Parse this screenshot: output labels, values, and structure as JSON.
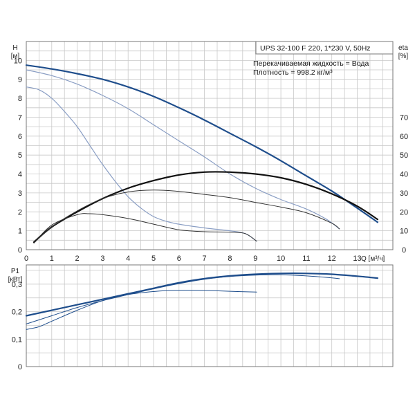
{
  "chart_data": [
    {
      "type": "line",
      "name": "head-chart",
      "info": {
        "model": "UPS 32-100 F 220, 1*230 V, 50Hz",
        "liquid": "Перекачиваемая жидкость = Вода",
        "density": "Плотность = 998.2 кг/м³"
      },
      "y_label_top": "H",
      "y_label_unit": "[м]",
      "y2_label_top": "eta",
      "y2_label_unit": "[%]",
      "x_label": "Q [м³/ч]",
      "x_ticks": [
        "0",
        "1",
        "2",
        "3",
        "4",
        "5",
        "6",
        "7",
        "8",
        "9",
        "10",
        "11",
        "12",
        "13"
      ],
      "y_ticks": [
        "0",
        "1",
        "2",
        "3",
        "4",
        "5",
        "6",
        "7",
        "8",
        "9",
        "10"
      ],
      "y2_ticks": [
        "0",
        "10",
        "20",
        "30",
        "40",
        "50",
        "60",
        "70"
      ],
      "xlim": [
        0,
        14.4
      ],
      "ylim": [
        0,
        11
      ],
      "y2lim": [
        0,
        110
      ],
      "grid": true,
      "series": [
        {
          "kind": "head",
          "color": "#1f4e8c",
          "width": 2.2,
          "points": [
            [
              0,
              9.75
            ],
            [
              1,
              9.55
            ],
            [
              2,
              9.3
            ],
            [
              3,
              9.0
            ],
            [
              4,
              8.6
            ],
            [
              5,
              8.1
            ],
            [
              6,
              7.5
            ],
            [
              7,
              6.85
            ],
            [
              8,
              6.15
            ],
            [
              9,
              5.45
            ],
            [
              10,
              4.7
            ],
            [
              11,
              3.9
            ],
            [
              12,
              3.1
            ],
            [
              13,
              2.2
            ],
            [
              13.8,
              1.45
            ]
          ]
        },
        {
          "kind": "head",
          "color": "#8a9ec4",
          "width": 1.2,
          "points": [
            [
              0,
              9.5
            ],
            [
              1,
              9.2
            ],
            [
              2,
              8.75
            ],
            [
              3,
              8.15
            ],
            [
              4,
              7.45
            ],
            [
              5,
              6.6
            ],
            [
              6,
              5.75
            ],
            [
              7,
              4.9
            ],
            [
              8,
              4.0
            ],
            [
              9,
              3.25
            ],
            [
              10,
              2.65
            ],
            [
              11,
              2.15
            ],
            [
              11.8,
              1.6
            ],
            [
              12.3,
              1.1
            ]
          ]
        },
        {
          "kind": "head",
          "color": "#8a9ec4",
          "width": 1.2,
          "points": [
            [
              0,
              8.6
            ],
            [
              0.5,
              8.45
            ],
            [
              1,
              8.0
            ],
            [
              1.5,
              7.3
            ],
            [
              2,
              6.5
            ],
            [
              2.5,
              5.5
            ],
            [
              3,
              4.5
            ],
            [
              3.5,
              3.6
            ],
            [
              4,
              2.8
            ],
            [
              4.5,
              2.2
            ],
            [
              5,
              1.75
            ],
            [
              5.5,
              1.5
            ],
            [
              6,
              1.35
            ],
            [
              7,
              1.15
            ],
            [
              8,
              1.0
            ],
            [
              8.6,
              0.85
            ],
            [
              9.05,
              0.45
            ]
          ]
        },
        {
          "kind": "eta",
          "color": "#111111",
          "width": 2.2,
          "points": [
            [
              0.3,
              4
            ],
            [
              1,
              12
            ],
            [
              2,
              20
            ],
            [
              3,
              27
            ],
            [
              4,
              32.5
            ],
            [
              5,
              36.5
            ],
            [
              6,
              39.5
            ],
            [
              7,
              41
            ],
            [
              8,
              41
            ],
            [
              9,
              40
            ],
            [
              10,
              38
            ],
            [
              11,
              34.5
            ],
            [
              12,
              29.5
            ],
            [
              13,
              23
            ],
            [
              13.8,
              16
            ]
          ]
        },
        {
          "kind": "eta",
          "color": "#333333",
          "width": 1.0,
          "points": [
            [
              0.3,
              3.5
            ],
            [
              1,
              12
            ],
            [
              2,
              20.5
            ],
            [
              3,
              27
            ],
            [
              4,
              30.5
            ],
            [
              5,
              31.5
            ],
            [
              6,
              30.8
            ],
            [
              7,
              29.2
            ],
            [
              8,
              27.5
            ],
            [
              9,
              25
            ],
            [
              10,
              22.5
            ],
            [
              11,
              19.5
            ],
            [
              12,
              14
            ],
            [
              12.3,
              11
            ]
          ]
        },
        {
          "kind": "eta",
          "color": "#333333",
          "width": 1.0,
          "points": [
            [
              0.3,
              3.5
            ],
            [
              1,
              13
            ],
            [
              2,
              18.5
            ],
            [
              2.5,
              19
            ],
            [
              3,
              18.5
            ],
            [
              4,
              16.5
            ],
            [
              5,
              13.5
            ],
            [
              6,
              10.5
            ],
            [
              7,
              9.5
            ],
            [
              8,
              9.3
            ],
            [
              8.6,
              8.5
            ],
            [
              9.05,
              4.5
            ]
          ]
        }
      ]
    },
    {
      "type": "line",
      "name": "power-chart",
      "y_label_top": "P1",
      "y_label_unit": "[кВт]",
      "y_ticks": [
        "0",
        "0,1",
        "0,2",
        "0,3"
      ],
      "xlim": [
        0,
        14.4
      ],
      "ylim": [
        0,
        0.37
      ],
      "grid": true,
      "series": [
        {
          "kind": "power",
          "color": "#1f4e8c",
          "width": 2.2,
          "points": [
            [
              0,
              0.185
            ],
            [
              1,
              0.205
            ],
            [
              2,
              0.225
            ],
            [
              3,
              0.245
            ],
            [
              4,
              0.265
            ],
            [
              5,
              0.285
            ],
            [
              6,
              0.305
            ],
            [
              7,
              0.32
            ],
            [
              8,
              0.33
            ],
            [
              9,
              0.336
            ],
            [
              10,
              0.339
            ],
            [
              11,
              0.339
            ],
            [
              12,
              0.336
            ],
            [
              13,
              0.329
            ],
            [
              13.8,
              0.322
            ]
          ]
        },
        {
          "kind": "power",
          "color": "#1f4e8c",
          "width": 1.0,
          "points": [
            [
              0,
              0.155
            ],
            [
              1,
              0.185
            ],
            [
              2,
              0.215
            ],
            [
              3,
              0.24
            ],
            [
              4,
              0.262
            ],
            [
              5,
              0.283
            ],
            [
              6,
              0.302
            ],
            [
              7,
              0.318
            ],
            [
              8,
              0.328
            ],
            [
              9,
              0.333
            ],
            [
              10,
              0.334
            ],
            [
              11,
              0.33
            ],
            [
              12,
              0.323
            ],
            [
              12.3,
              0.32
            ]
          ]
        },
        {
          "kind": "power",
          "color": "#1f4e8c",
          "width": 1.0,
          "points": [
            [
              0,
              0.135
            ],
            [
              0.5,
              0.145
            ],
            [
              1,
              0.165
            ],
            [
              2,
              0.205
            ],
            [
              3,
              0.24
            ],
            [
              4,
              0.262
            ],
            [
              5,
              0.273
            ],
            [
              6,
              0.278
            ],
            [
              7,
              0.277
            ],
            [
              8,
              0.274
            ],
            [
              9.05,
              0.271
            ]
          ]
        }
      ]
    }
  ]
}
